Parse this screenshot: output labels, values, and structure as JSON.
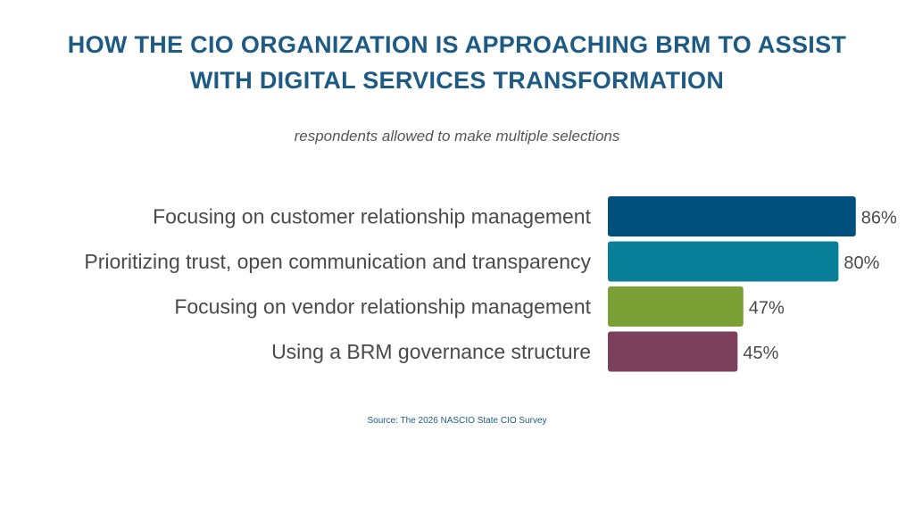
{
  "title_line1": "HOW THE CIO ORGANIZATION IS APPROACHING BRM TO ASSIST",
  "title_line2": "WITH DIGITAL SERVICES TRANSFORMATION",
  "subtitle": "respondents allowed to make multiple selections",
  "source": "Source: The 2026 NASCIO State CIO Survey",
  "chart_data": {
    "type": "bar",
    "orientation": "horizontal",
    "categories": [
      "Focusing on customer relationship management",
      "Prioritizing trust, open communication and transparency",
      "Focusing on vendor relationship management",
      "Using a BRM governance structure"
    ],
    "values": [
      86,
      80,
      47,
      45
    ],
    "value_labels": [
      "86%",
      "80%",
      "47%",
      "45%"
    ],
    "colors": [
      "#00507d",
      "#0a7f99",
      "#7a9f34",
      "#7c3f5c"
    ],
    "xlim": [
      0,
      100
    ],
    "grid": false,
    "legend": "none"
  }
}
